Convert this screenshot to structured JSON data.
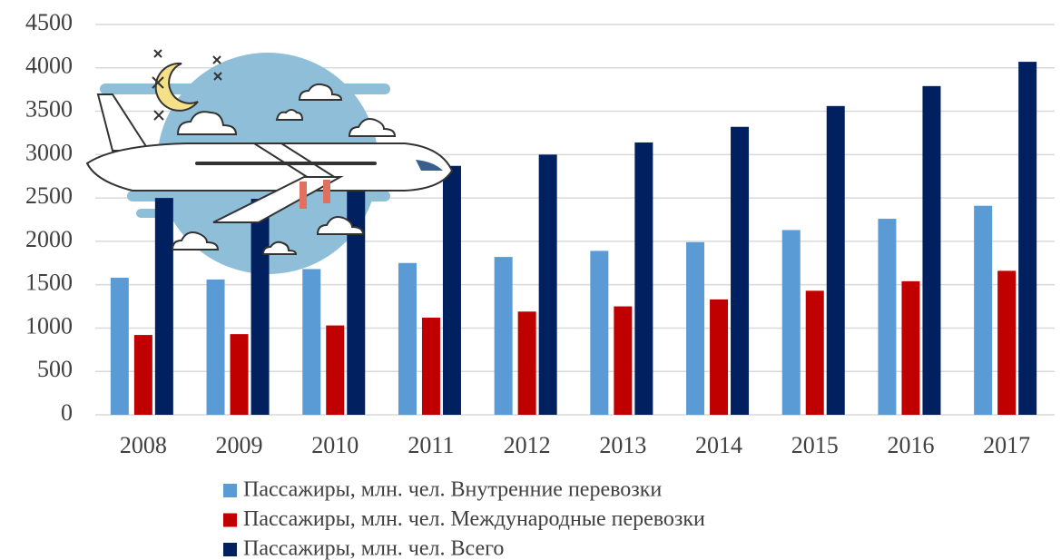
{
  "chart_data": {
    "type": "bar",
    "categories": [
      "2008",
      "2009",
      "2010",
      "2011",
      "2012",
      "2013",
      "2014",
      "2015",
      "2016",
      "2017"
    ],
    "series": [
      {
        "name": "Пассажиры, млн. чел. Внутренние перевозки",
        "color": "#5b9bd5",
        "values": [
          1580,
          1560,
          1680,
          1750,
          1820,
          1890,
          1990,
          2130,
          2260,
          2410
        ]
      },
      {
        "name": "Пассажиры, млн. чел. Международные перевозки",
        "color": "#c00000",
        "values": [
          920,
          930,
          1030,
          1120,
          1190,
          1250,
          1330,
          1430,
          1540,
          1660
        ]
      },
      {
        "name": "Пассажиры, млн. чел. Всего",
        "color": "#002060",
        "values": [
          2500,
          2490,
          2710,
          2870,
          3000,
          3140,
          3320,
          3560,
          3790,
          4070
        ]
      }
    ],
    "ylim": [
      0,
      4500
    ],
    "yticks": [
      0,
      500,
      1000,
      1500,
      2000,
      2500,
      3000,
      3500,
      4000,
      4500
    ],
    "grid": true,
    "legend": "bottom"
  }
}
